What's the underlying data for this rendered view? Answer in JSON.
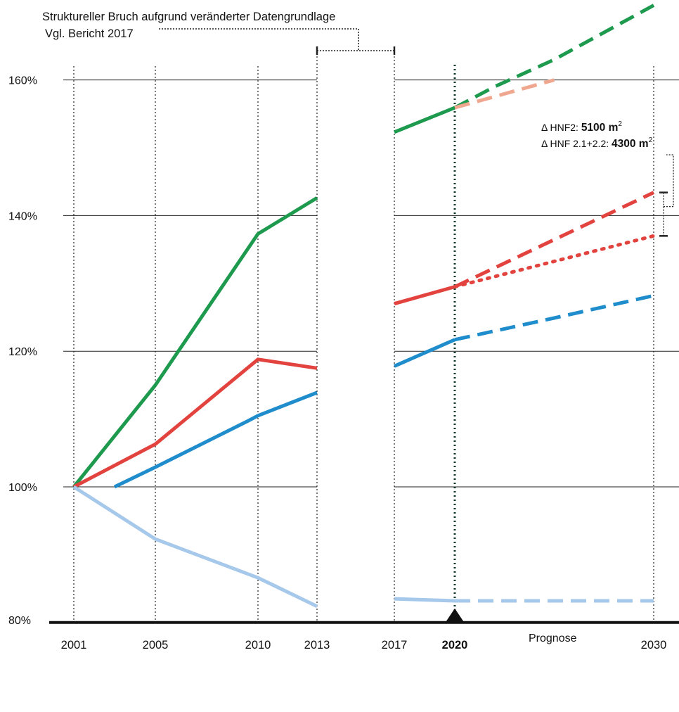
{
  "chart_data": {
    "type": "line",
    "title": "",
    "ylim": [
      80,
      160
    ],
    "y_ticks": [
      {
        "value": 80,
        "label": "80%"
      },
      {
        "value": 100,
        "label": "100%"
      },
      {
        "value": 120,
        "label": "120%"
      },
      {
        "value": 140,
        "label": "140%"
      },
      {
        "value": 160,
        "label": "160%"
      }
    ],
    "x_ticks": [
      {
        "value": 2001,
        "label": "2001",
        "bold": false
      },
      {
        "value": 2005,
        "label": "2005",
        "bold": false
      },
      {
        "value": 2010,
        "label": "2010",
        "bold": false
      },
      {
        "value": 2013,
        "label": "2013",
        "bold": false
      },
      {
        "value": 2017,
        "label": "2017",
        "bold": false
      },
      {
        "value": 2020,
        "label": "2020",
        "bold": true
      },
      {
        "value": 2030,
        "label": "2030",
        "bold": false
      }
    ],
    "prognose_label": "Prognose",
    "break_note": {
      "line1": "Struktureller Bruch aufgrund veränderter Datengrundlage",
      "line2": "Vgl. Bericht 2017",
      "from": 2013,
      "to": 2017
    },
    "delta_labels": [
      {
        "prefix": "Δ HNF2: ",
        "value": "5100 m",
        "sup": "2"
      },
      {
        "prefix": "Δ HNF 2.1+2.2: ",
        "value": "4300 m",
        "sup": "2"
      }
    ],
    "series": [
      {
        "color": "#1e9a4e",
        "style": "solid",
        "points": [
          [
            2001,
            100
          ],
          [
            2005,
            115
          ],
          [
            2010,
            137.3
          ],
          [
            2013,
            142.6
          ]
        ]
      },
      {
        "color": "#1e9a4e",
        "style": "solid",
        "points": [
          [
            2017,
            152.3
          ],
          [
            2020,
            155.9
          ]
        ]
      },
      {
        "color": "#1e9a4e",
        "style": "dashed",
        "points": [
          [
            2020,
            155.9
          ],
          [
            2022,
            159
          ],
          [
            2025,
            163
          ],
          [
            2030,
            171
          ]
        ]
      },
      {
        "color": "#f0a790",
        "style": "dashed",
        "points": [
          [
            2020,
            155.9
          ],
          [
            2025,
            160
          ]
        ]
      },
      {
        "color": "#e2433f",
        "style": "solid",
        "points": [
          [
            2001,
            100
          ],
          [
            2005,
            106.3
          ],
          [
            2010,
            118.8
          ],
          [
            2013,
            117.5
          ]
        ]
      },
      {
        "color": "#e2433f",
        "style": "solid",
        "points": [
          [
            2017,
            127
          ],
          [
            2020,
            129.5
          ]
        ]
      },
      {
        "color": "#e2433f",
        "style": "dashed",
        "points": [
          [
            2020,
            129.5
          ],
          [
            2030,
            143.4
          ]
        ]
      },
      {
        "color": "#e2433f",
        "style": "dotted",
        "points": [
          [
            2020,
            129.5
          ],
          [
            2030,
            137
          ]
        ]
      },
      {
        "color": "#1f8ccc",
        "style": "solid",
        "points": [
          [
            2003,
            100
          ],
          [
            2005,
            102.9
          ],
          [
            2009.5,
            109.7
          ],
          [
            2010,
            110.5
          ],
          [
            2013,
            113.9
          ]
        ]
      },
      {
        "color": "#1f8ccc",
        "style": "solid",
        "points": [
          [
            2017,
            117.8
          ],
          [
            2020,
            121.7
          ]
        ]
      },
      {
        "color": "#1f8ccc",
        "style": "dashed",
        "points": [
          [
            2020,
            121.7
          ],
          [
            2025,
            124.9
          ],
          [
            2030,
            128.2
          ]
        ]
      },
      {
        "color": "#a6c8ea",
        "style": "solid",
        "points": [
          [
            2001,
            100
          ],
          [
            2005,
            92.3
          ],
          [
            2010,
            86.6
          ],
          [
            2013,
            82.4
          ]
        ]
      },
      {
        "color": "#a6c8ea",
        "style": "solid",
        "points": [
          [
            2017,
            83.5
          ],
          [
            2020,
            83.2
          ]
        ]
      },
      {
        "color": "#a6c8ea",
        "style": "dashed",
        "points": [
          [
            2020,
            83.2
          ],
          [
            2030,
            83.2
          ]
        ]
      }
    ]
  }
}
